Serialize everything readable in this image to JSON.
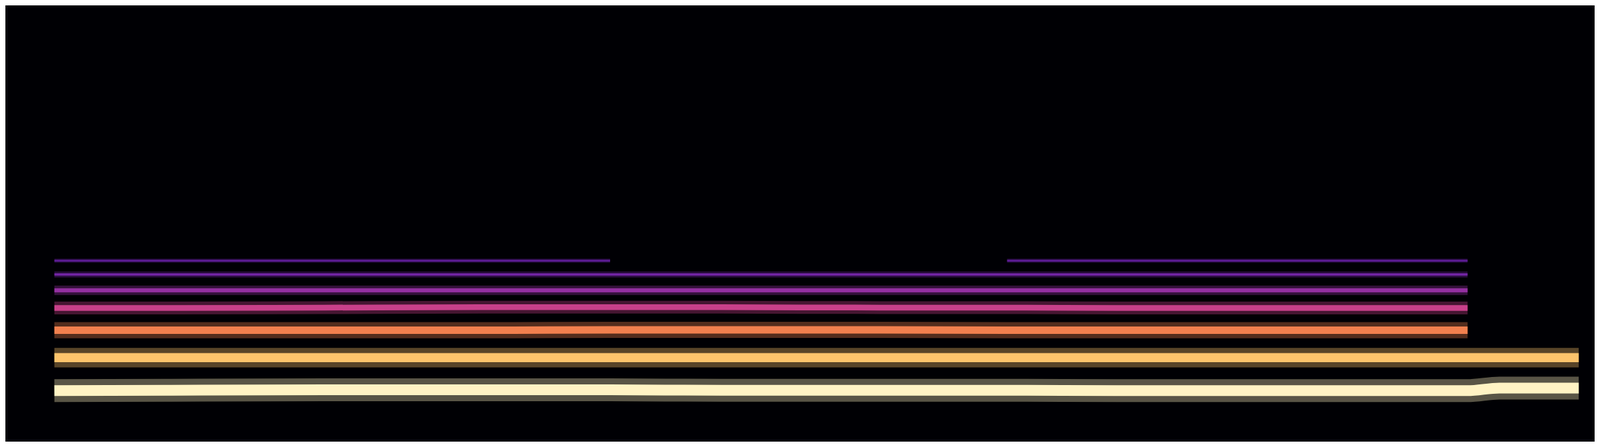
{
  "chart_data": {
    "type": "line",
    "tick_labels": false,
    "grid": false,
    "xlim": [
      0,
      100
    ],
    "ylim": [
      0,
      100
    ],
    "x": [
      3,
      10,
      20,
      30,
      38,
      45,
      55,
      63,
      70,
      80,
      88,
      92,
      94,
      99
    ],
    "series": [
      {
        "color": "#fff3c4",
        "values": [
          11.4,
          11.5,
          11.6,
          11.6,
          11.6,
          11.5,
          11.5,
          11.5,
          11.4,
          11.4,
          11.4,
          11.4,
          12.0,
          12.0
        ]
      },
      {
        "color": "#fdc46c",
        "values": [
          19.0,
          19.0,
          19.0,
          19.0,
          19.0,
          19.0,
          19.0,
          19.0,
          19.0,
          19.0,
          19.0,
          19.0,
          19.0,
          19.0
        ]
      },
      {
        "color": "#f2804e",
        "values": [
          25.3,
          25.3,
          25.3,
          25.3,
          25.4,
          25.4,
          25.4,
          25.3,
          25.3,
          25.3,
          25.3,
          25.3,
          null,
          null
        ]
      },
      {
        "color": "#c8408a",
        "values": [
          30.4,
          30.4,
          30.5,
          30.6,
          30.6,
          30.6,
          30.5,
          30.5,
          30.4,
          30.4,
          30.4,
          30.4,
          null,
          null
        ]
      },
      {
        "color": "#9430a2",
        "values": [
          34.5,
          34.5,
          34.5,
          34.5,
          34.5,
          34.5,
          34.5,
          34.5,
          34.5,
          34.5,
          34.5,
          34.5,
          null,
          null
        ]
      },
      {
        "color": "#7224a4",
        "values": [
          38.1,
          38.1,
          38.1,
          38.1,
          38.1,
          38.1,
          38.1,
          38.1,
          38.1,
          38.1,
          38.1,
          38.1,
          null,
          null
        ]
      },
      {
        "color": "#5c1c94",
        "values": [
          41.3,
          41.3,
          41.3,
          41.3,
          41.3,
          null,
          null,
          41.3,
          41.3,
          41.3,
          41.3,
          41.3,
          null,
          null
        ]
      }
    ]
  }
}
